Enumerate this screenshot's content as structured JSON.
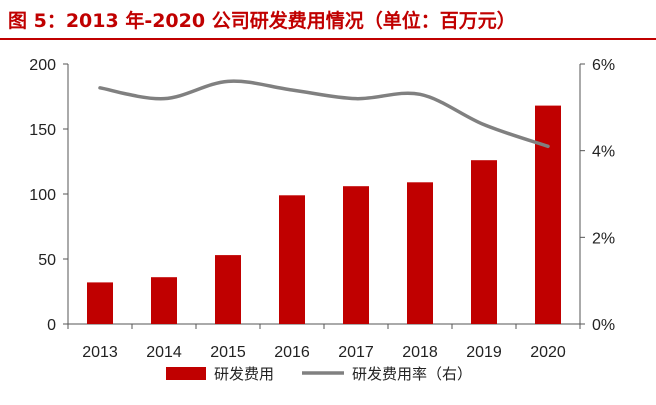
{
  "title": "图 5：2013 年-2020 公司研发费用情况（单位：百万元）",
  "colors": {
    "bar": "#c00000",
    "line": "#808080",
    "title": "#c00000"
  },
  "chart_data": {
    "type": "bar",
    "title": "图 5：2013 年-2020 公司研发费用情况（单位：百万元）",
    "categories": [
      "2013",
      "2014",
      "2015",
      "2016",
      "2017",
      "2018",
      "2019",
      "2020"
    ],
    "series": [
      {
        "name": "研发费用",
        "type": "bar",
        "axis": "left",
        "values": [
          32,
          36,
          53,
          99,
          106,
          109,
          126,
          168
        ]
      },
      {
        "name": "研发费用率（右）",
        "type": "line",
        "axis": "right",
        "values": [
          5.45,
          5.2,
          5.6,
          5.4,
          5.2,
          5.3,
          4.6,
          4.1
        ]
      }
    ],
    "y_left": {
      "ylim": [
        0,
        200
      ],
      "ticks": [
        "0",
        "50",
        "100",
        "150",
        "200"
      ]
    },
    "y_right": {
      "ylim": [
        0,
        6
      ],
      "ticks": [
        "0%",
        "2%",
        "4%",
        "6%"
      ]
    },
    "legend": [
      "研发费用",
      "研发费用率（右）"
    ],
    "legend_position": "bottom",
    "grid": false
  }
}
